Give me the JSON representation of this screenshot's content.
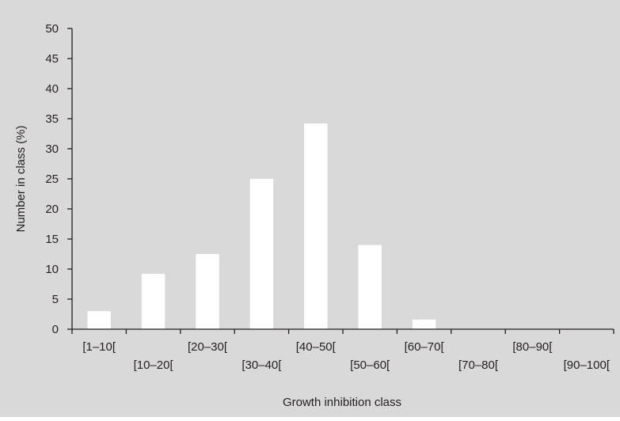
{
  "chart_data": {
    "type": "bar",
    "title": "",
    "xlabel": "Growth inhibition class",
    "ylabel": "Number in class (%)",
    "ylim": [
      0,
      50
    ],
    "yticks": [
      "0",
      "5",
      "10",
      "15",
      "20",
      "25",
      "30",
      "35",
      "40",
      "45",
      "50"
    ],
    "categories": [
      "[1–10[",
      "[10–20[",
      "[20–30[",
      "[30–40[",
      "[40–50[",
      "[50–60[",
      "[60–70[",
      "[70–80[",
      "[80–90[",
      "[90–100["
    ],
    "values": [
      3,
      9.2,
      12.5,
      25,
      34.2,
      14,
      1.6,
      0,
      0,
      0
    ],
    "grid": false,
    "legend": "none",
    "colors": {
      "background": "#d9d9da",
      "bar": "#ffffff",
      "axis": "#231f20"
    }
  }
}
